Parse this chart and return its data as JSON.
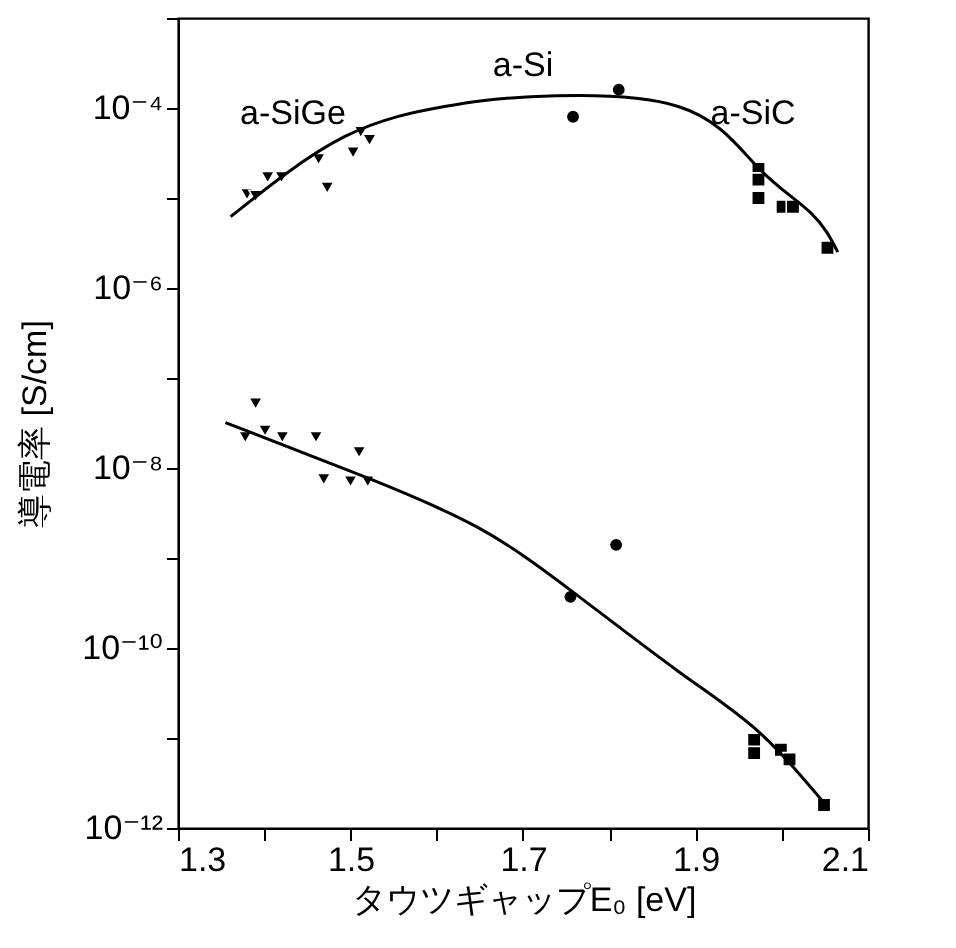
{
  "chart_data": {
    "type": "scatter",
    "xlabel": "タウツギャップE₀ [eV]",
    "ylabel": "導電率 [S/cm]",
    "xlim": [
      1.3,
      2.1
    ],
    "xticks": [
      1.3,
      {
        "value": 1.4,
        "label": null
      },
      1.5,
      {
        "value": 1.6,
        "label": null
      },
      1.7,
      {
        "value": 1.8,
        "label": null
      },
      1.9,
      {
        "value": 2.0,
        "label": null
      },
      2.1
    ],
    "ylim": [
      1e-12,
      0.001
    ],
    "log": "y",
    "yticks": [
      {
        "value": 1e-12,
        "label": "10⁻¹²"
      },
      {
        "value": 1e-11,
        "label": null
      },
      {
        "value": 1e-10,
        "label": "10⁻¹⁰"
      },
      {
        "value": 1e-09,
        "label": null
      },
      {
        "value": 1e-08,
        "label": "10⁻⁸"
      },
      {
        "value": 1e-07,
        "label": null
      },
      {
        "value": 1e-06,
        "label": "10⁻⁶"
      },
      {
        "value": 1e-05,
        "label": null
      },
      {
        "value": 0.0001,
        "label": "10⁻⁴"
      },
      {
        "value": 0.001,
        "label": null
      }
    ],
    "grid": false,
    "series": [
      {
        "marker": "triangle",
        "color": "#000000",
        "x": [
          1.38,
          1.39,
          1.404,
          1.42,
          1.463,
          1.473,
          1.503,
          1.512,
          1.522
        ],
        "values": [
          1.1e-05,
          1.05e-05,
          1.7e-05,
          1.7e-05,
          2.7e-05,
          1.3e-05,
          3.2e-05,
          5.4e-05,
          4.4e-05
        ]
      },
      {
        "marker": "circle",
        "color": "#000000",
        "x": [
          1.758,
          1.811
        ],
        "values": [
          8e-05,
          0.00016
        ]
      },
      {
        "marker": "square",
        "color": "#000000",
        "x": [
          1.973,
          1.973,
          1.973,
          2.001,
          2.013,
          2.053
        ],
        "values": [
          2.1e-05,
          1.6e-05,
          1e-05,
          8e-06,
          8e-06,
          2.8e-06
        ]
      },
      {
        "marker": "triangle",
        "color": "#000000",
        "x": [
          1.378,
          1.39,
          1.401,
          1.421,
          1.46,
          1.469,
          1.5,
          1.51,
          1.52
        ],
        "values": [
          2.2e-08,
          5.2e-08,
          2.6e-08,
          2.2e-08,
          2.2e-08,
          7.5e-09,
          7.1e-09,
          1.5e-08,
          7.1e-09
        ]
      },
      {
        "marker": "circle",
        "color": "#000000",
        "x": [
          1.755,
          1.808
        ],
        "values": [
          3.7e-10,
          1.4e-09
        ]
      },
      {
        "marker": "square",
        "color": "#000000",
        "x": [
          1.968,
          1.968,
          1.999,
          2.009,
          2.049
        ],
        "values": [
          9.5e-12,
          6.8e-12,
          7.4e-12,
          5.8e-12,
          1.8e-12
        ]
      },
      {
        "type": "line",
        "marker": "none",
        "line_style": "solid",
        "color": "#000000",
        "x": [
          1.361,
          1.493,
          1.609,
          1.709,
          1.88,
          1.972,
          2.034,
          2.065
        ],
        "values": [
          6.2e-06,
          4.8e-05,
          0.000104,
          0.000133,
          0.000104,
          2.2e-05,
          6.8e-06,
          2.5e-06
        ]
      },
      {
        "type": "line",
        "marker": "none",
        "line_style": "solid",
        "color": "#000000",
        "x": [
          1.355,
          1.516,
          1.647,
          1.755,
          1.879,
          1.972,
          2.049
        ],
        "values": [
          3.2e-08,
          8e-09,
          2.2e-09,
          4.4e-10,
          5.6e-11,
          1.2e-11,
          1.9e-12
        ]
      }
    ],
    "annotations": [
      "a-SiGe",
      "a-Si",
      "a-SiC"
    ]
  }
}
